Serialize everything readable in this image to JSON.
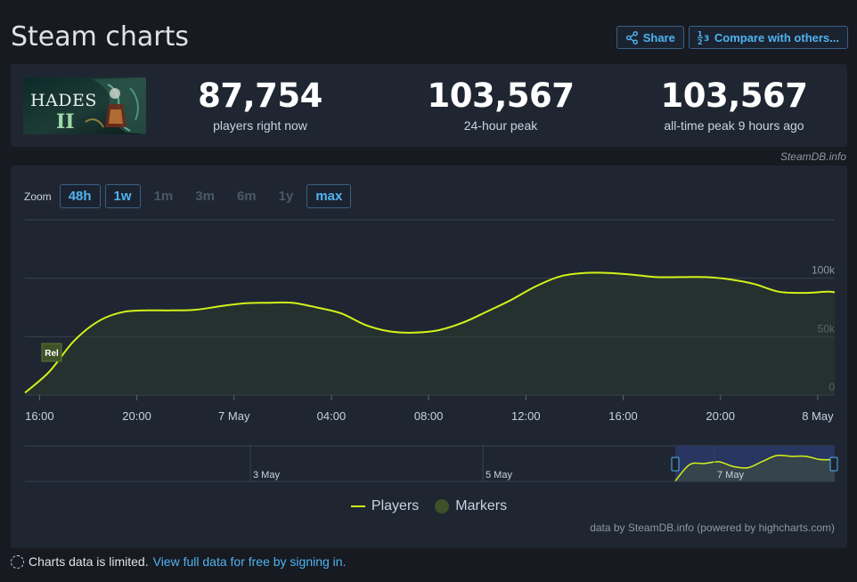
{
  "page": {
    "title": "Steam charts",
    "share_label": "Share",
    "compare_label": "Compare with others..."
  },
  "game": {
    "logo_text": "HADES",
    "logo_numeral": "II"
  },
  "stats": [
    {
      "value": "87,754",
      "label": "players right now"
    },
    {
      "value": "103,567",
      "label": "24-hour peak"
    },
    {
      "value": "103,567",
      "label": "all-time peak 9 hours ago"
    }
  ],
  "credit_top": "SteamDB.info",
  "zoom": {
    "label": "Zoom",
    "buttons": [
      {
        "label": "48h",
        "enabled": true
      },
      {
        "label": "1w",
        "enabled": true
      },
      {
        "label": "1m",
        "enabled": false
      },
      {
        "label": "3m",
        "enabled": false
      },
      {
        "label": "6m",
        "enabled": false
      },
      {
        "label": "1y",
        "enabled": false
      },
      {
        "label": "max",
        "enabled": true
      }
    ]
  },
  "colors": {
    "line": "#d3f218",
    "marker": "#3e5128",
    "link": "#4fb3f0",
    "grid": "#3a4250",
    "navigator_selection": "#2a3a6a"
  },
  "chart_data": {
    "type": "area",
    "x_unit": "hours since 16:00 on 6 May",
    "x_ticks": [
      {
        "x": 0,
        "label": "16:00"
      },
      {
        "x": 4,
        "label": "20:00"
      },
      {
        "x": 8,
        "label": "7 May"
      },
      {
        "x": 12,
        "label": "04:00"
      },
      {
        "x": 16,
        "label": "08:00"
      },
      {
        "x": 20,
        "label": "12:00"
      },
      {
        "x": 24,
        "label": "16:00"
      },
      {
        "x": 28,
        "label": "20:00"
      },
      {
        "x": 32,
        "label": "8 May"
      }
    ],
    "xlim": [
      -0.6,
      32.7
    ],
    "y_ticks": [
      {
        "y": 0,
        "label": "0"
      },
      {
        "y": 50000,
        "label": "50k"
      },
      {
        "y": 100000,
        "label": "100k"
      }
    ],
    "ylim": [
      0,
      150000
    ],
    "grid": true,
    "series": [
      {
        "name": "Players",
        "x": [
          -0.6,
          0.4,
          1.4,
          2.4,
          3.4,
          4.4,
          5.4,
          6.4,
          7.4,
          8.4,
          9.4,
          10.4,
          11.4,
          12.4,
          13.4,
          14.4,
          15.4,
          16.4,
          17.4,
          18.4,
          19.4,
          20.4,
          21.4,
          22.4,
          23.4,
          24.4,
          25.4,
          26.4,
          27.4,
          28.4,
          29.4,
          30.4,
          31.4,
          32.4,
          32.7
        ],
        "y": [
          2000,
          20000,
          46000,
          63000,
          71000,
          72500,
          72500,
          73000,
          76000,
          78500,
          79000,
          79000,
          75000,
          70000,
          60000,
          54500,
          53500,
          55500,
          62000,
          71500,
          81500,
          93000,
          101500,
          104500,
          104500,
          103000,
          101000,
          101000,
          101000,
          99000,
          95000,
          88500,
          87500,
          88500,
          88000
        ]
      }
    ],
    "markers": [
      {
        "x": 0.5,
        "label": "Rel"
      }
    ],
    "navigator": {
      "labels": [
        "3 May",
        "5 May",
        "7 May"
      ],
      "curve_y": [
        2000,
        68000,
        72000,
        79000,
        60000,
        55000,
        80000,
        104000,
        101000,
        101000,
        88000,
        88000
      ]
    },
    "legend": {
      "items": [
        "Players",
        "Markers"
      ],
      "position": "bottom"
    },
    "credit": "data by SteamDB.info (powered by highcharts.com)"
  },
  "footer": {
    "note": "Charts data is limited.",
    "link_text": "View full data for free by signing in."
  }
}
